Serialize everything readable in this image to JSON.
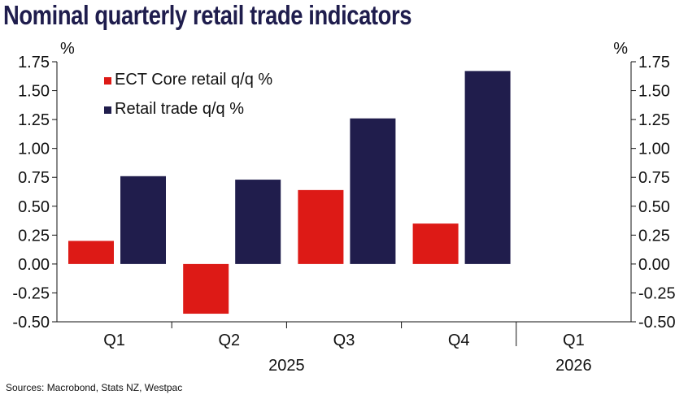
{
  "chart_data": {
    "type": "bar",
    "title": "Nominal quarterly retail trade indicators",
    "categories": [
      "Q1",
      "Q2",
      "Q3",
      "Q4",
      "Q1"
    ],
    "year_labels": [
      "2025",
      "2026"
    ],
    "series": [
      {
        "name": "ECT Core retail q/q %",
        "color": "#dd1a16",
        "values": [
          0.2,
          -0.43,
          0.64,
          0.35,
          null
        ]
      },
      {
        "name": "Retail trade q/q %",
        "color": "#201d4c",
        "values": [
          0.76,
          0.73,
          1.26,
          1.67,
          null
        ]
      }
    ],
    "yticks": [
      "-0.50",
      "-0.25",
      "0.00",
      "0.25",
      "0.50",
      "0.75",
      "1.00",
      "1.25",
      "1.50",
      "1.75"
    ],
    "ylim": [
      -0.5,
      1.75
    ],
    "ylabel_left": "%",
    "ylabel_right": "%",
    "legend_position": "top-left",
    "grid": false
  },
  "source": "Sources: Macrobond, Stats NZ, Westpac"
}
